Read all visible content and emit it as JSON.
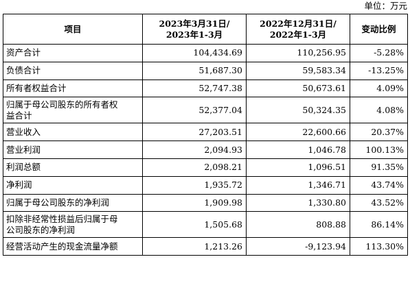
{
  "unit_label": "单位：万元",
  "table": {
    "headers": [
      "项目",
      "2023年3月31日/\n2023年1-3月",
      "2022年12月31日/\n2022年1-3月",
      "变动比例"
    ],
    "rows": [
      {
        "item": "资产合计",
        "v2023": "104,434.69",
        "v2022": "110,256.95",
        "change": "-5.28%"
      },
      {
        "item": "负债合计",
        "v2023": "51,687.30",
        "v2022": "59,583.34",
        "change": "-13.25%"
      },
      {
        "item": "所有者权益合计",
        "v2023": "52,747.38",
        "v2022": "50,673.61",
        "change": "4.09%"
      },
      {
        "item": "归属于母公司股东的所有者权\n益合计",
        "v2023": "52,377.04",
        "v2022": "50,324.35",
        "change": "4.08%"
      },
      {
        "item": "营业收入",
        "v2023": "27,203.51",
        "v2022": "22,600.66",
        "change": "20.37%"
      },
      {
        "item": "营业利润",
        "v2023": "2,094.93",
        "v2022": "1,046.78",
        "change": "100.13%"
      },
      {
        "item": "利润总额",
        "v2023": "2,098.21",
        "v2022": "1,096.51",
        "change": "91.35%"
      },
      {
        "item": "净利润",
        "v2023": "1,935.72",
        "v2022": "1,346.71",
        "change": "43.74%"
      },
      {
        "item": "归属于母公司股东的净利润",
        "v2023": "1,909.98",
        "v2022": "1,330.80",
        "change": "43.52%"
      },
      {
        "item": "扣除非经常性损益后归属于母\n公司股东的净利润",
        "v2023": "1,505.68",
        "v2022": "808.88",
        "change": "86.14%"
      },
      {
        "item": "经营活动产生的现金流量净额",
        "v2023": "1,213.26",
        "v2022": "-9,123.94",
        "change": "113.30%"
      }
    ]
  }
}
